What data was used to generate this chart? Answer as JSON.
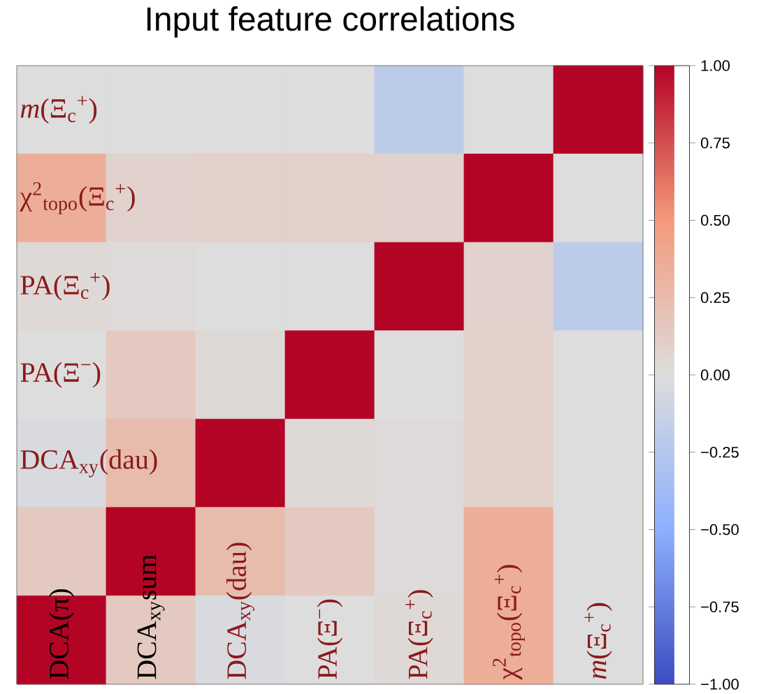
{
  "chart_data": {
    "type": "heatmap",
    "title": "Input feature correlations",
    "categories": [
      "DCA(π)",
      "DCA$_{xy}$sum",
      "DCA$_{xy}$(dau)",
      "PA(Ξ$^{−}$)",
      "PA(Ξ$_{c}$$^{+}$)",
      "χ$^{2}$$_{topo}$(Ξ$_{c}$$^{+}$)",
      "*m*(Ξ$_{c}$$^{+}$)"
    ],
    "y_categories": [
      "*m*(Ξ$_{c}$$^{+}$)",
      "χ$^{2}$$_{topo}$(Ξ$_{c}$$^{+}$)",
      "PA(Ξ$_{c}$$^{+}$)",
      "PA(Ξ$^{−}$)",
      "DCA$_{xy}$(dau)",
      null,
      null
    ],
    "cells": [
      [
        0.0,
        0.0,
        0.0,
        0.0,
        -0.2,
        0.0,
        1.0
      ],
      [
        0.35,
        0.08,
        0.1,
        0.1,
        0.08,
        1.0,
        0.0
      ],
      [
        0.03,
        0.02,
        0.0,
        0.0,
        1.0,
        0.08,
        -0.2
      ],
      [
        0.0,
        0.15,
        0.03,
        1.0,
        0.0,
        0.1,
        0.0
      ],
      [
        -0.03,
        0.25,
        1.0,
        0.03,
        0.02,
        0.1,
        0.0
      ],
      [
        0.15,
        1.0,
        0.25,
        0.15,
        0.02,
        0.35,
        0.0
      ],
      [
        1.0,
        0.15,
        -0.03,
        0.0,
        0.03,
        0.35,
        0.0
      ]
    ],
    "clim": [
      -1.0,
      1.0
    ],
    "cticks": [
      {
        "value": -1.0,
        "label": "−1.00"
      },
      {
        "value": -0.75,
        "label": "−0.75"
      },
      {
        "value": -0.5,
        "label": "−0.50"
      },
      {
        "value": -0.25,
        "label": "−0.25"
      },
      {
        "value": 0.0,
        "label": "0.00"
      },
      {
        "value": 0.25,
        "label": "0.25"
      },
      {
        "value": 0.5,
        "label": "0.50"
      },
      {
        "value": 0.75,
        "label": "0.75"
      },
      {
        "value": 1.0,
        "label": "1.00"
      }
    ]
  }
}
